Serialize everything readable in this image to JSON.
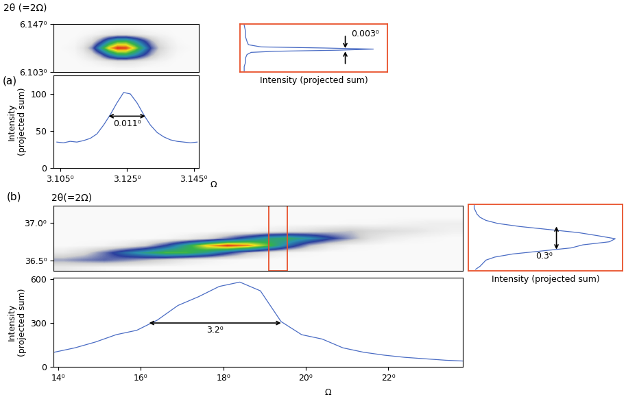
{
  "chart_data": [
    {
      "type": "heatmap",
      "y_label": "2θ (=2Ω)",
      "annotations": [
        {
          "text": "(a)"
        }
      ],
      "xlim": [
        3.103,
        3.1465
      ],
      "ylim": [
        6.103,
        6.147
      ],
      "yticks": [
        {
          "value": 6.103,
          "label": "6.103⁰"
        },
        {
          "value": 6.147,
          "label": "6.147⁰"
        }
      ],
      "tick_labels": "y",
      "zlim": [
        0,
        100
      ],
      "cells": [
        [
          2,
          2,
          2,
          2,
          2,
          2,
          2,
          3,
          3,
          3,
          2,
          2,
          2,
          2,
          2,
          2,
          2
        ],
        [
          2,
          2,
          2,
          3,
          4,
          6,
          8,
          10,
          10,
          9,
          7,
          5,
          4,
          3,
          2,
          2,
          2
        ],
        [
          2,
          2,
          3,
          6,
          12,
          25,
          45,
          60,
          62,
          50,
          35,
          20,
          10,
          6,
          3,
          2,
          2
        ],
        [
          2,
          3,
          4,
          10,
          25,
          55,
          85,
          100,
          98,
          80,
          55,
          30,
          15,
          8,
          4,
          3,
          2
        ],
        [
          2,
          2,
          3,
          6,
          12,
          28,
          50,
          65,
          66,
          52,
          36,
          20,
          10,
          6,
          3,
          2,
          2
        ],
        [
          2,
          2,
          2,
          3,
          4,
          6,
          9,
          11,
          11,
          9,
          7,
          5,
          4,
          3,
          2,
          2,
          2
        ],
        [
          2,
          2,
          2,
          2,
          2,
          2,
          2,
          3,
          3,
          3,
          2,
          2,
          2,
          2,
          2,
          2,
          2
        ]
      ]
    },
    {
      "type": "line",
      "x_label": "Ω",
      "y_label": "Intensity\n(projected sum)",
      "color": "#4a6cc4",
      "x": [
        3.104,
        3.106,
        3.108,
        3.11,
        3.112,
        3.114,
        3.116,
        3.118,
        3.12,
        3.122,
        3.124,
        3.126,
        3.128,
        3.13,
        3.132,
        3.134,
        3.136,
        3.138,
        3.14,
        3.142,
        3.144,
        3.146
      ],
      "values": [
        35,
        34,
        36,
        35,
        37,
        40,
        46,
        58,
        72,
        88,
        102,
        100,
        88,
        72,
        58,
        48,
        42,
        38,
        36,
        35,
        34,
        35
      ],
      "xlim": [
        3.103,
        3.1465
      ],
      "ylim": [
        0,
        125
      ],
      "xticks": [
        {
          "value": 3.105,
          "label": "3.105⁰"
        },
        {
          "value": 3.125,
          "label": "3.125⁰"
        },
        {
          "value": 3.145,
          "label": "3.145⁰"
        }
      ],
      "yticks": [
        0,
        50,
        100
      ],
      "annotations": [
        {
          "text": "0.011⁰",
          "x": [
            3.1195,
            3.1305
          ],
          "y": 70
        }
      ]
    },
    {
      "type": "line",
      "orientation": "horizontal",
      "x_label": "Intensity (projected sum)",
      "color": "#4a6cc4",
      "y": [
        6.104,
        6.108,
        6.112,
        6.116,
        6.119,
        6.121,
        6.122,
        6.123,
        6.124,
        6.125,
        6.126,
        6.128,
        6.131,
        6.135,
        6.14,
        6.146
      ],
      "values": [
        3,
        3,
        4,
        4,
        5,
        8,
        25,
        70,
        95,
        60,
        15,
        6,
        5,
        4,
        4,
        3
      ],
      "xlim": [
        0,
        105
      ],
      "ylim": [
        6.103,
        6.147
      ],
      "tick_labels": false,
      "annotations": [
        {
          "text": "0.003⁰",
          "y": [
            6.1218,
            6.1248
          ],
          "x": 75
        }
      ]
    },
    {
      "type": "heatmap",
      "y_label": "2θ(=2Ω)",
      "annotations": [
        {
          "text": "(b)"
        }
      ],
      "xlim": [
        13.88,
        23.81
      ],
      "ylim": [
        36.36,
        37.23
      ],
      "yticks": [
        {
          "value": 36.5,
          "label": "36.5⁰"
        },
        {
          "value": 37.0,
          "label": "37.0⁰"
        }
      ],
      "tick_labels": "y",
      "zlim": [
        0,
        100
      ],
      "selection_x": [
        19.1,
        19.55
      ],
      "cells": [
        [
          8,
          6,
          4,
          3,
          2,
          2,
          2,
          2,
          2,
          2,
          2,
          2,
          2,
          2,
          2,
          2,
          2,
          2,
          2,
          2
        ],
        [
          22,
          26,
          29,
          25,
          20,
          14,
          8,
          5,
          3,
          2,
          2,
          2,
          2,
          2,
          2,
          2,
          2,
          2,
          2,
          2
        ],
        [
          8,
          14,
          27,
          43,
          57,
          69,
          68,
          55,
          36,
          19,
          9,
          4,
          3,
          2,
          2,
          2,
          2,
          2,
          2,
          2
        ],
        [
          2,
          3,
          4,
          8,
          16,
          34,
          60,
          86,
          100,
          93,
          71,
          43,
          20,
          9,
          4,
          3,
          2,
          2,
          2,
          2
        ],
        [
          2,
          2,
          2,
          2,
          2,
          3,
          6,
          12,
          26,
          42,
          57,
          62,
          51,
          36,
          23,
          11,
          6,
          4,
          3,
          2
        ],
        [
          2,
          2,
          2,
          2,
          2,
          2,
          2,
          2,
          3,
          3,
          6,
          9,
          12,
          16,
          18,
          14,
          12,
          10,
          7,
          5
        ],
        [
          2,
          2,
          2,
          2,
          2,
          2,
          2,
          2,
          2,
          2,
          2,
          2,
          2,
          2,
          3,
          3,
          4,
          5,
          6,
          6
        ],
        [
          2,
          2,
          2,
          2,
          2,
          2,
          2,
          2,
          2,
          2,
          2,
          2,
          2,
          2,
          2,
          2,
          2,
          2,
          2,
          2
        ],
        [
          2,
          2,
          2,
          2,
          2,
          2,
          2,
          2,
          2,
          2,
          2,
          2,
          2,
          2,
          2,
          2,
          2,
          2,
          2,
          2
        ]
      ]
    },
    {
      "type": "line",
      "x_label": "Ω",
      "y_label": "Intensity\n(projected sum)",
      "color": "#4a6cc4",
      "x": [
        13.9,
        14.4,
        14.9,
        15.4,
        15.9,
        16.4,
        16.9,
        17.4,
        17.9,
        18.4,
        18.9,
        19.4,
        19.9,
        20.4,
        20.9,
        21.4,
        21.9,
        22.4,
        22.9,
        23.4,
        23.8
      ],
      "values": [
        100,
        130,
        170,
        220,
        250,
        320,
        420,
        480,
        550,
        580,
        520,
        310,
        220,
        190,
        130,
        100,
        80,
        65,
        55,
        45,
        40
      ],
      "xlim": [
        13.88,
        23.81
      ],
      "ylim": [
        0,
        610
      ],
      "xticks": [
        {
          "value": 14,
          "label": "14⁰"
        },
        {
          "value": 16,
          "label": "16⁰"
        },
        {
          "value": 18,
          "label": "18⁰"
        },
        {
          "value": 20,
          "label": "20⁰"
        },
        {
          "value": 22,
          "label": "22⁰"
        }
      ],
      "yticks": [
        0,
        300,
        600
      ],
      "annotations": [
        {
          "text": "3.2⁰",
          "x": [
            16.2,
            19.4
          ],
          "y": 300
        }
      ]
    },
    {
      "type": "line",
      "orientation": "horizontal",
      "x_label": "Intensity (projected sum)",
      "color": "#4a6cc4",
      "y": [
        36.38,
        36.42,
        36.46,
        36.5,
        36.54,
        36.58,
        36.62,
        36.66,
        36.7,
        36.74,
        36.78,
        36.82,
        36.86,
        36.9,
        36.94,
        36.98,
        37.02,
        37.06,
        37.1,
        37.14,
        37.18,
        37.22
      ],
      "values": [
        5,
        8,
        10,
        12,
        18,
        30,
        50,
        70,
        78,
        96,
        100,
        88,
        75,
        55,
        35,
        20,
        12,
        8,
        6,
        5,
        4,
        4
      ],
      "xlim": [
        0,
        105
      ],
      "ylim": [
        36.36,
        37.23
      ],
      "tick_labels": false,
      "annotations": [
        {
          "text": "0.3⁰",
          "y": [
            36.64,
            36.94
          ],
          "x": 60
        }
      ]
    }
  ]
}
